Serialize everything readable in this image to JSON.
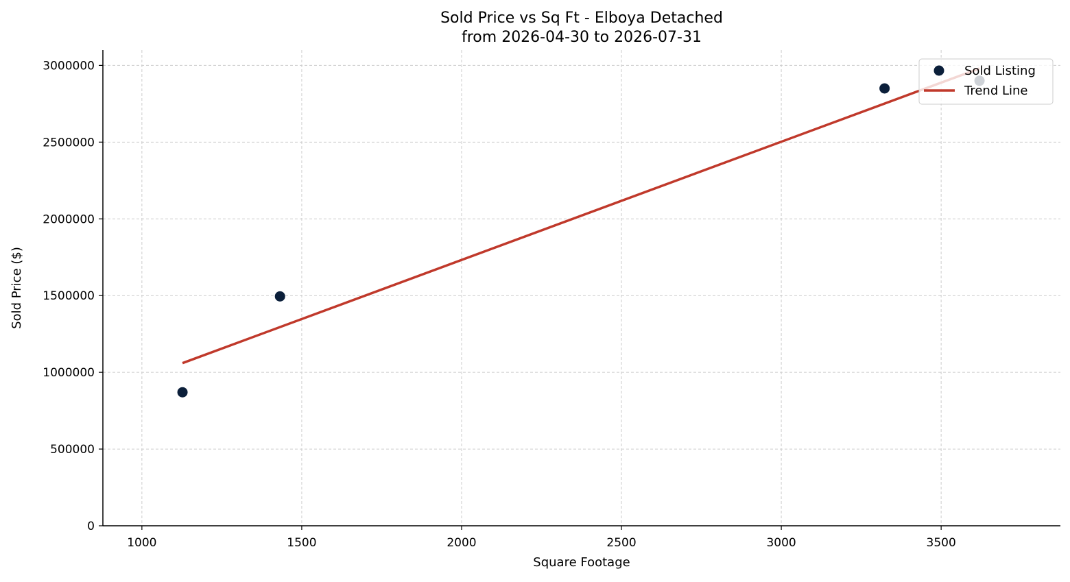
{
  "chart_data": {
    "type": "scatter",
    "title": "Sold Price vs Sq Ft - Elboya Detached",
    "subtitle": "from 2026-04-30 to 2026-07-31",
    "xlabel": "Square Footage",
    "ylabel": "Sold Price ($)",
    "xlim": [
      878,
      3873
    ],
    "ylim": [
      0,
      3100000
    ],
    "xticks": [
      1000,
      1500,
      2000,
      2500,
      3000,
      3500
    ],
    "xtick_labels": [
      "1000",
      "1500",
      "2000",
      "2500",
      "3000",
      "3500"
    ],
    "yticks": [
      0,
      500000,
      1000000,
      1500000,
      2000000,
      2500000,
      3000000
    ],
    "ytick_labels": [
      "0",
      "500000",
      "1000000",
      "1500000",
      "2000000",
      "2500000",
      "3000000"
    ],
    "grid": true,
    "legend_position": "top-right",
    "series": [
      {
        "name": "Sold Listing",
        "kind": "scatter",
        "color": "#0b1f3a",
        "points": [
          {
            "x": 1127,
            "y": 870000
          },
          {
            "x": 1432,
            "y": 1495000
          },
          {
            "x": 3323,
            "y": 2850000
          },
          {
            "x": 3620,
            "y": 2900000
          }
        ]
      },
      {
        "name": "Trend Line",
        "kind": "line",
        "color": "#c0392b",
        "points": [
          {
            "x": 1127,
            "y": 1060000
          },
          {
            "x": 3620,
            "y": 2980000
          }
        ]
      }
    ]
  }
}
